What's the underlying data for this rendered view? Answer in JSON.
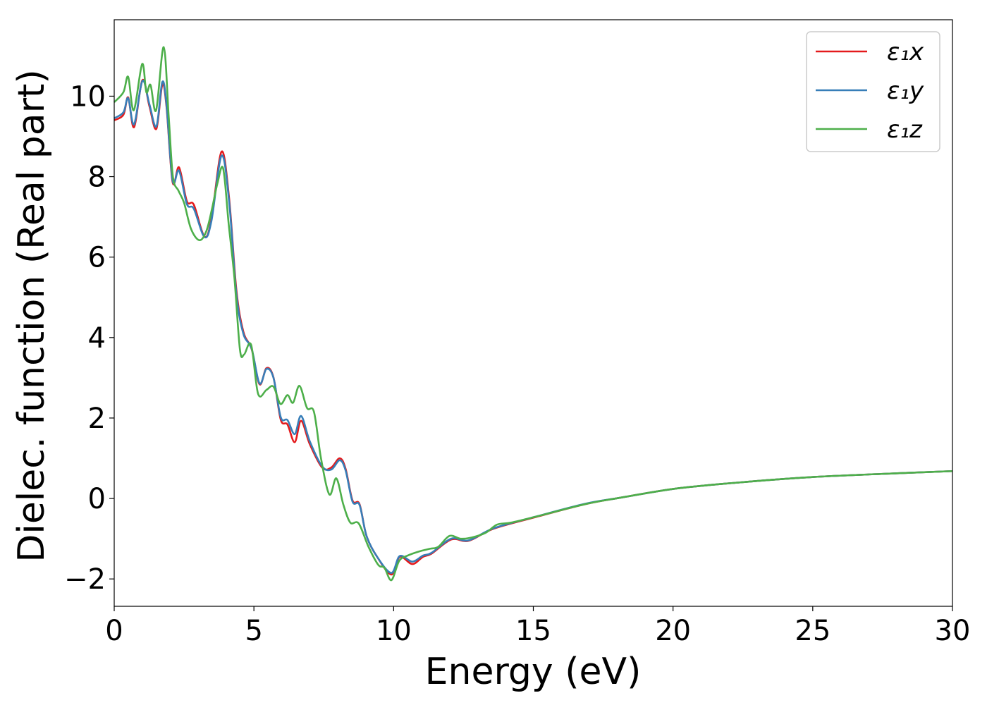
{
  "chart_data": {
    "type": "line",
    "title": "",
    "xlabel": "Energy (eV)",
    "ylabel": "Dielec. function (Real part)",
    "xlim": [
      0,
      30
    ],
    "ylim": [
      -2.68,
      11.9
    ],
    "xticks": [
      0,
      5,
      10,
      15,
      20,
      25,
      30
    ],
    "yticks": [
      -2,
      0,
      2,
      4,
      6,
      8,
      10
    ],
    "ytick_labels": [
      "−2",
      "0",
      "2",
      "4",
      "6",
      "8",
      "10"
    ],
    "grid": false,
    "legend_placement": "top-right",
    "series": [
      {
        "name": "ε₁x",
        "color": "#e41a1c",
        "x": [
          0,
          0.33,
          0.5,
          0.71,
          1.01,
          1.26,
          1.51,
          1.72,
          1.87,
          2.09,
          2.32,
          2.6,
          2.85,
          3.23,
          3.48,
          3.84,
          4.11,
          4.37,
          4.62,
          4.92,
          5.2,
          5.45,
          5.7,
          5.96,
          6.2,
          6.46,
          6.69,
          7.0,
          7.44,
          7.77,
          8.07,
          8.28,
          8.53,
          8.78,
          9.03,
          9.41,
          9.92,
          10.22,
          10.67,
          11.05,
          11.36,
          12.06,
          12.69,
          13.58,
          15.09,
          16.86,
          18.12,
          20.14,
          22.4,
          24.93,
          27.45,
          30
        ],
        "y": [
          9.4,
          9.54,
          9.97,
          9.23,
          10.4,
          9.75,
          9.19,
          10.28,
          9.75,
          7.86,
          8.23,
          7.39,
          7.3,
          6.51,
          6.95,
          8.62,
          7.48,
          5.2,
          4.15,
          3.71,
          2.84,
          3.24,
          3.01,
          1.96,
          1.84,
          1.4,
          1.93,
          1.35,
          0.77,
          0.77,
          1.0,
          0.74,
          -0.05,
          -0.14,
          -0.93,
          -1.45,
          -1.89,
          -1.45,
          -1.63,
          -1.45,
          -1.37,
          -1.02,
          -1.05,
          -0.75,
          -0.46,
          -0.14,
          0.02,
          0.25,
          0.4,
          0.53,
          0.61,
          0.68
        ]
      },
      {
        "name": "ε₁y",
        "color": "#377eb8",
        "x": [
          0,
          0.33,
          0.5,
          0.71,
          1.01,
          1.26,
          1.51,
          1.72,
          1.87,
          2.09,
          2.32,
          2.6,
          2.85,
          3.23,
          3.48,
          3.84,
          4.11,
          4.37,
          4.62,
          4.92,
          5.2,
          5.45,
          5.7,
          5.96,
          6.2,
          6.46,
          6.69,
          7.0,
          7.44,
          7.77,
          8.07,
          8.28,
          8.53,
          8.78,
          9.03,
          9.41,
          9.92,
          10.22,
          10.67,
          11.05,
          11.36,
          12.06,
          12.69,
          13.58,
          15.09,
          16.86,
          18.12,
          20.14,
          22.4,
          24.93,
          27.45,
          30
        ],
        "y": [
          9.45,
          9.6,
          9.95,
          9.3,
          10.38,
          9.8,
          9.25,
          10.35,
          9.8,
          7.9,
          8.15,
          7.32,
          7.2,
          6.5,
          6.9,
          8.52,
          7.4,
          5.1,
          4.1,
          3.72,
          2.86,
          3.22,
          3.0,
          2.02,
          1.95,
          1.6,
          2.05,
          1.42,
          0.8,
          0.72,
          0.95,
          0.7,
          -0.08,
          -0.16,
          -0.93,
          -1.45,
          -1.85,
          -1.43,
          -1.57,
          -1.42,
          -1.35,
          -1.0,
          -1.04,
          -0.74,
          -0.45,
          -0.13,
          0.02,
          0.25,
          0.4,
          0.53,
          0.61,
          0.68
        ]
      },
      {
        "name": "ε₁z",
        "color": "#4daf4a",
        "x": [
          0,
          0.33,
          0.5,
          0.7,
          1.0,
          1.15,
          1.3,
          1.5,
          1.77,
          1.95,
          2.1,
          2.3,
          2.5,
          2.75,
          3.05,
          3.3,
          3.5,
          3.7,
          3.9,
          4.1,
          4.3,
          4.5,
          4.65,
          4.9,
          5.15,
          5.45,
          5.7,
          5.95,
          6.2,
          6.4,
          6.63,
          6.9,
          7.15,
          7.4,
          7.7,
          7.95,
          8.2,
          8.45,
          8.75,
          9.1,
          9.45,
          9.67,
          9.92,
          10.2,
          10.5,
          10.9,
          11.3,
          11.6,
          12.0,
          12.4,
          12.8,
          13.3,
          13.7,
          14.2,
          15.1,
          16.86,
          18.12,
          20.14,
          22.4,
          24.93,
          27.45,
          30
        ],
        "y": [
          9.85,
          10.1,
          10.48,
          9.65,
          10.8,
          10.1,
          10.28,
          9.65,
          11.22,
          9.5,
          8.0,
          7.65,
          7.35,
          6.7,
          6.42,
          6.65,
          7.2,
          7.85,
          8.2,
          6.8,
          5.5,
          3.7,
          3.58,
          3.82,
          2.6,
          2.7,
          2.78,
          2.35,
          2.57,
          2.38,
          2.8,
          2.25,
          2.15,
          1.0,
          0.1,
          0.5,
          -0.15,
          -0.6,
          -0.62,
          -1.2,
          -1.65,
          -1.72,
          -2.03,
          -1.55,
          -1.42,
          -1.32,
          -1.25,
          -1.2,
          -0.93,
          -1.0,
          -0.97,
          -0.85,
          -0.65,
          -0.6,
          -0.45,
          -0.14,
          0.02,
          0.25,
          0.4,
          0.53,
          0.61,
          0.68
        ]
      }
    ]
  }
}
